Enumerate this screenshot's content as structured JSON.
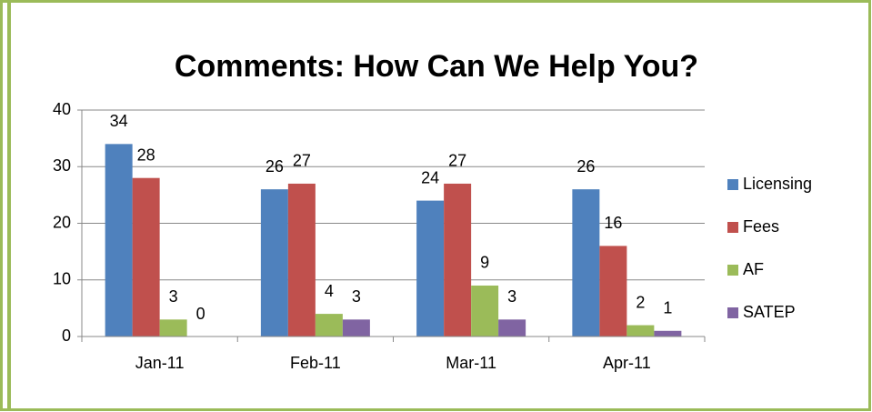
{
  "chart_data": {
    "type": "bar",
    "title": "Comments: How Can We Help You?",
    "categories": [
      "Jan-11",
      "Feb-11",
      "Mar-11",
      "Apr-11"
    ],
    "series": [
      {
        "name": "Licensing",
        "color": "#4f81bd",
        "values": [
          34,
          26,
          24,
          26
        ]
      },
      {
        "name": "Fees",
        "color": "#c0504d",
        "values": [
          28,
          27,
          27,
          16
        ]
      },
      {
        "name": "AF",
        "color": "#9bbb59",
        "values": [
          3,
          4,
          9,
          2
        ]
      },
      {
        "name": "SATEP",
        "color": "#8064a2",
        "values": [
          0,
          3,
          3,
          1
        ]
      }
    ],
    "ylim": [
      0,
      40
    ],
    "yticks": [
      0,
      10,
      20,
      30,
      40
    ],
    "grid": true,
    "legend": "right"
  }
}
